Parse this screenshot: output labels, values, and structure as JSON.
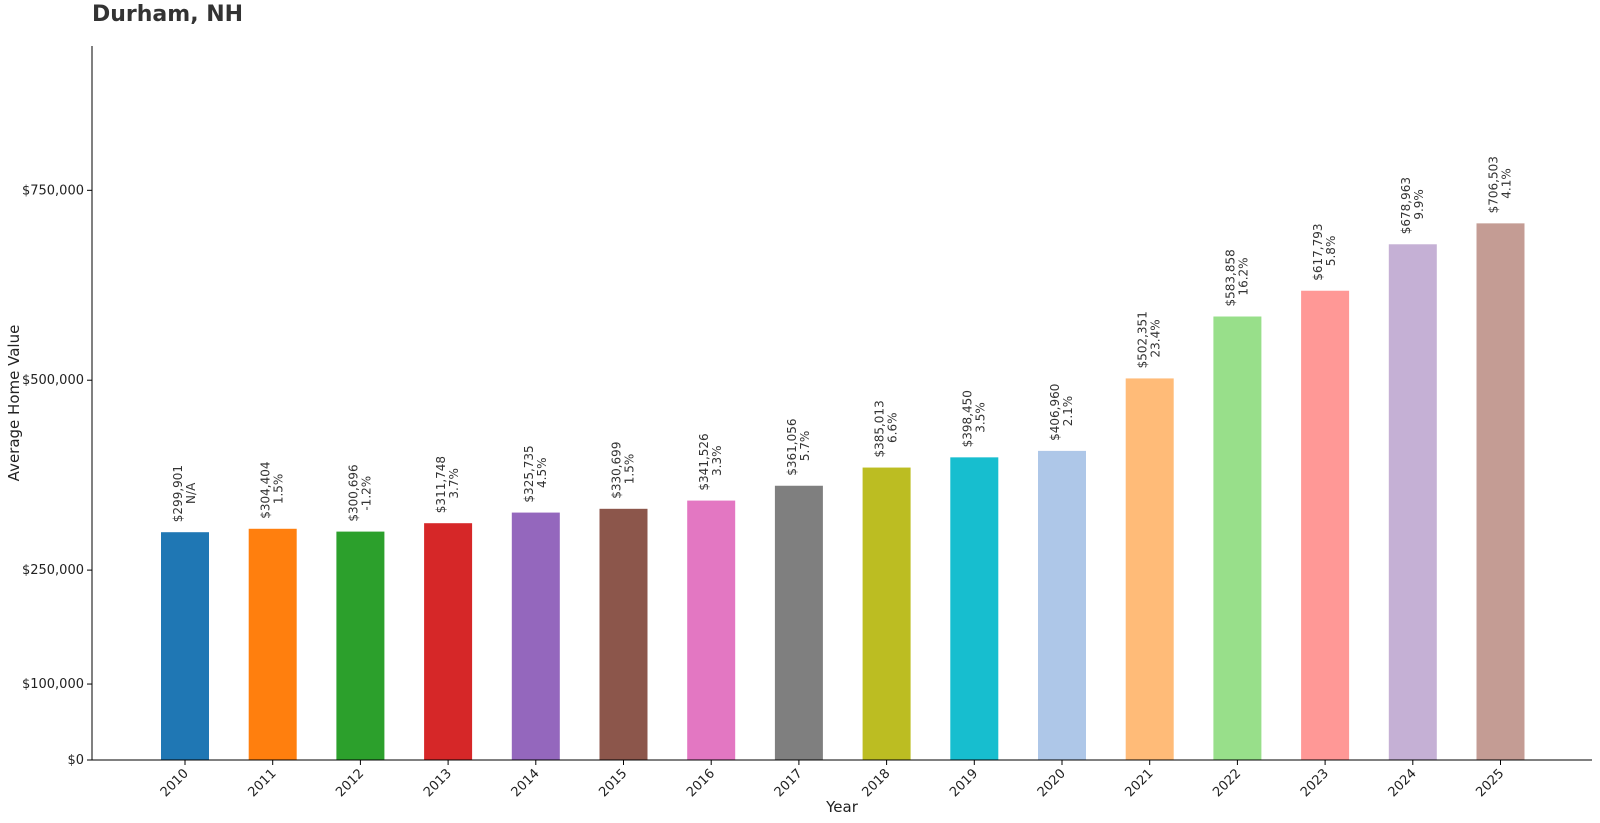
{
  "chart_data": {
    "type": "bar",
    "title": "Durham, NH",
    "xlabel": "Year",
    "ylabel": "Average Home Value",
    "ylim": [
      0,
      940000
    ],
    "grid": false,
    "yticks": [
      0,
      100000,
      250000,
      500000,
      750000
    ],
    "ytick_labels": [
      "$0",
      "$100,000",
      "$250,000",
      "$500,000",
      "$750,000"
    ],
    "categories": [
      "2010",
      "2011",
      "2012",
      "2013",
      "2014",
      "2015",
      "2016",
      "2017",
      "2018",
      "2019",
      "2020",
      "2021",
      "2022",
      "2023",
      "2024",
      "2025"
    ],
    "values": [
      299901,
      304404,
      300696,
      311748,
      325735,
      330699,
      341526,
      361056,
      385013,
      398450,
      406960,
      502351,
      583858,
      617793,
      678963,
      706503
    ],
    "value_labels": [
      "$299,901",
      "$304,404",
      "$300,696",
      "$311,748",
      "$325,735",
      "$330,699",
      "$341,526",
      "$361,056",
      "$385,013",
      "$398,450",
      "$406,960",
      "$502,351",
      "$583,858",
      "$617,793",
      "$678,963",
      "$706,503"
    ],
    "change_labels": [
      "N/A",
      "1.5%",
      "-1.2%",
      "3.7%",
      "4.5%",
      "1.5%",
      "3.3%",
      "5.7%",
      "6.6%",
      "3.5%",
      "2.1%",
      "23.4%",
      "16.2%",
      "5.8%",
      "9.9%",
      "4.1%"
    ],
    "colors": [
      "#1f77b4",
      "#ff7f0e",
      "#2ca02c",
      "#d62728",
      "#9467bd",
      "#8c564b",
      "#e377c2",
      "#7f7f7f",
      "#bcbd22",
      "#17becf",
      "#aec7e8",
      "#ffbb78",
      "#98df8a",
      "#ff9896",
      "#c5b0d5",
      "#c49c94"
    ]
  }
}
